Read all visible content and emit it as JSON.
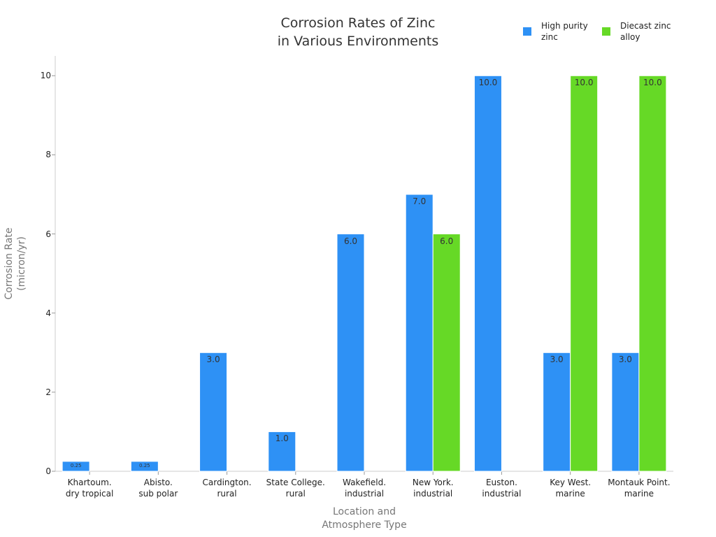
{
  "chart_data": {
    "type": "bar",
    "title": "Corrosion Rates of Zinc\nin Various Environments",
    "x_label": "Location and\nAtmosphere Type",
    "y_label": "Corrosion Rate\n(micron/yr)",
    "categories": [
      "Khartoum.\ndry tropical",
      "Abisto.\nsub polar",
      "Cardington.\nrural",
      "State College.\nrural",
      "Wakefield.\nindustrial",
      "New York.\nindustrial",
      "Euston.\nindustrial",
      "Key West.\nmarine",
      "Montauk Point.\nmarine"
    ],
    "series": [
      {
        "name": "High purity\nzinc",
        "color": "#2e91f5",
        "values": [
          0.25,
          0.25,
          3,
          1,
          6,
          7,
          10,
          3,
          3
        ],
        "value_labels": [
          "0.25",
          "0.25",
          "3.0",
          "1.0",
          "6.0",
          "7.0",
          "10.0",
          "3.0",
          "3.0"
        ]
      },
      {
        "name": "Diecast zinc\nalloy",
        "color": "#66d926",
        "values": [
          null,
          null,
          null,
          null,
          null,
          6,
          null,
          10,
          10
        ],
        "value_labels": [
          null,
          null,
          null,
          null,
          null,
          "6.0",
          null,
          "10.0",
          "10.0"
        ]
      }
    ],
    "ylim": [
      0,
      10.5
    ],
    "yticks": [
      0,
      2,
      4,
      6,
      8,
      10
    ],
    "legend": "upper right",
    "grid": false
  }
}
